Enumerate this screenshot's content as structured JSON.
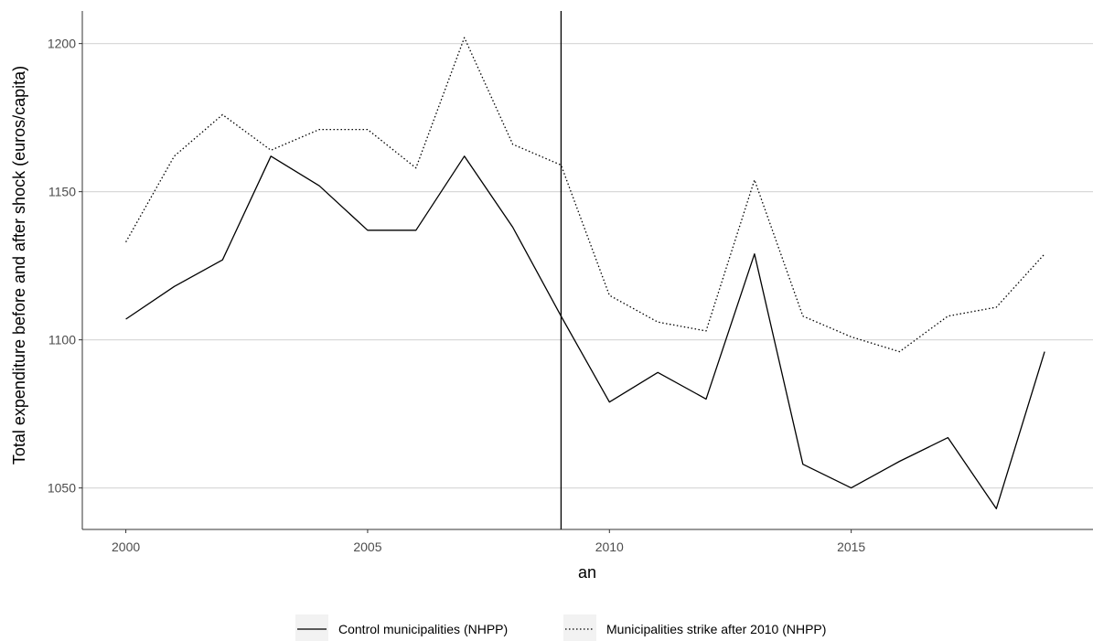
{
  "chart_data": {
    "type": "line",
    "title": "",
    "xlabel": "an",
    "ylabel": "Total expenditure before and after shock (euros/capita)",
    "x": [
      2000,
      2001,
      2002,
      2003,
      2004,
      2005,
      2006,
      2007,
      2008,
      2009,
      2010,
      2011,
      2012,
      2013,
      2014,
      2015,
      2016,
      2017,
      2018,
      2019
    ],
    "series": [
      {
        "name": "Control municipalities (NHPP)",
        "line_style": "solid",
        "values": [
          1107,
          1118,
          1127,
          1162,
          1152,
          1137,
          1137,
          1162,
          1138,
          1108,
          1079,
          1089,
          1080,
          1129,
          1058,
          1050,
          1059,
          1067,
          1043,
          1096
        ]
      },
      {
        "name": "Municipalities strike after 2010 (NHPP)",
        "line_style": "dotted",
        "values": [
          1133,
          1162,
          1176,
          1164,
          1171,
          1171,
          1158,
          1202,
          1166,
          1159,
          1115,
          1106,
          1103,
          1154,
          1108,
          1101,
          1096,
          1108,
          1111,
          1129
        ]
      }
    ],
    "xlim": [
      1999.1,
      2020.0
    ],
    "ylim": [
      1036,
      1211
    ],
    "x_ticks": [
      2000,
      2005,
      2010,
      2015
    ],
    "x_tick_labels": [
      "2000",
      "2005",
      "2010",
      "2015"
    ],
    "y_ticks": [
      1050,
      1100,
      1150,
      1200
    ],
    "y_tick_labels": [
      "1050",
      "1100",
      "1150",
      "1200"
    ],
    "vline_x": 2009,
    "grid": true,
    "legend_position": "bottom",
    "colors": {
      "line": "#000000",
      "grid": "#d9d9d9",
      "axis": "#333333",
      "tick_label": "#4d4d4d",
      "legend_key_bg": "#f2f2f2"
    }
  }
}
